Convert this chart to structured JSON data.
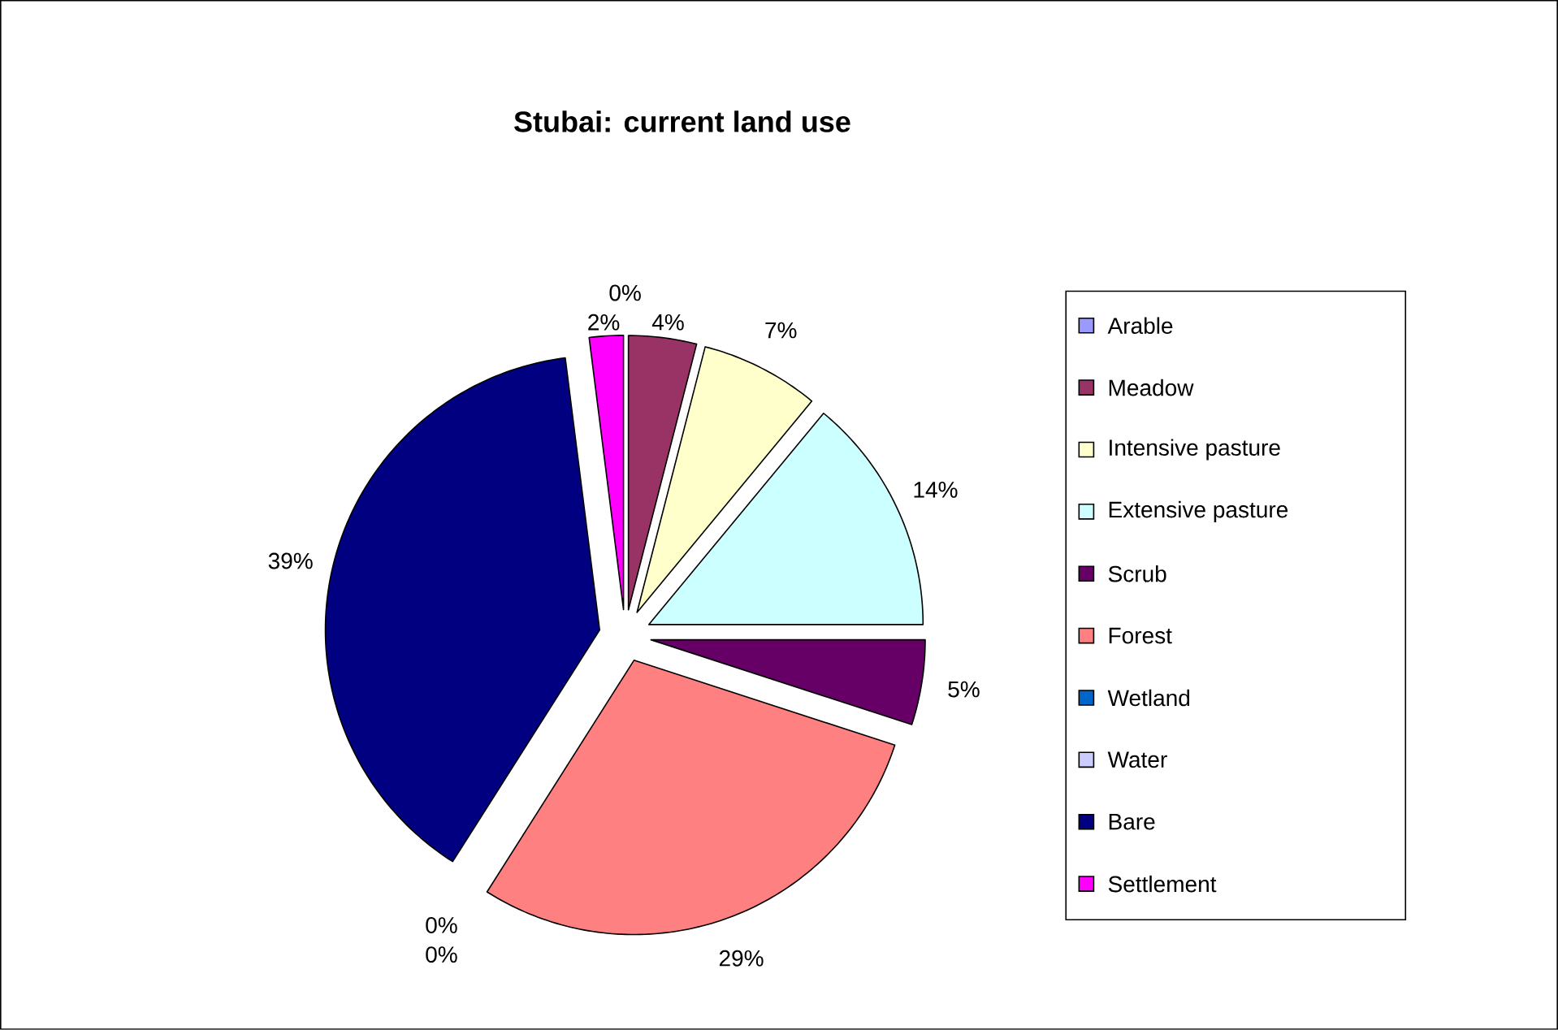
{
  "chart_data": {
    "type": "pie",
    "title": "Stubai: current land use",
    "categories": [
      "Arable",
      "Meadow",
      "Intensive pasture",
      "Extensive pasture",
      "Scrub",
      "Forest",
      "Wetland",
      "Water",
      "Bare",
      "Settlement"
    ],
    "values": [
      0,
      4,
      7,
      14,
      5,
      29,
      0,
      0,
      39,
      2
    ],
    "value_labels": [
      "0%",
      "4%",
      "7%",
      "14%",
      "5%",
      "29%",
      "0%",
      "0%",
      "39%",
      "2%"
    ],
    "colors": [
      "#9999ff",
      "#993366",
      "#ffffcc",
      "#ccffff",
      "#660066",
      "#ff8080",
      "#0066cc",
      "#ccccff",
      "#000080",
      "#ff00ff"
    ],
    "legend": "right"
  }
}
